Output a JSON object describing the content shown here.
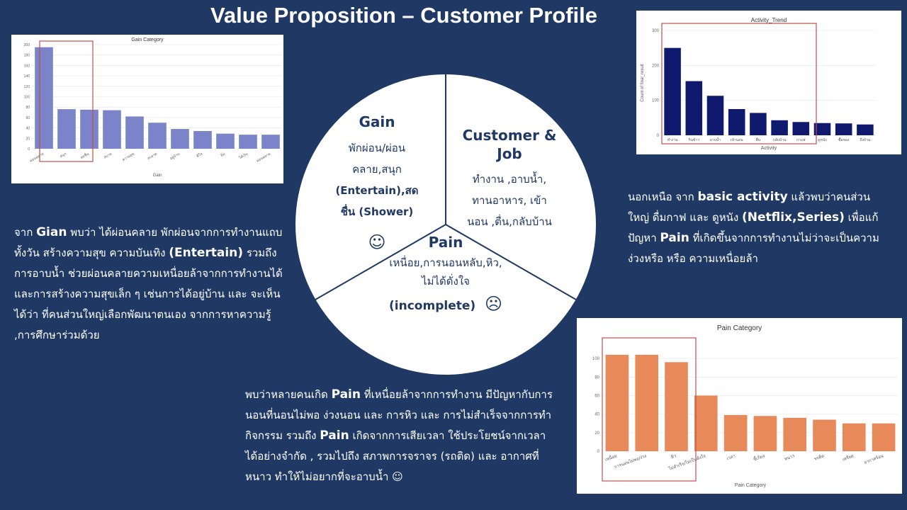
{
  "page_title": "Value Proposition – Customer Profile",
  "gain_text": {
    "p1": "จาก ",
    "k1": "Gian",
    "p2": " พบว่า ได้ผ่อนคลาย พักผ่อนจากการทำงานแถบทั้งวัน สร้างความสุข ความบันเทิง ",
    "k2": "(Entertain)",
    "p3": " รวมถึง การอาบน้ำ ช่วยผ่อนคลายความเหนื่อยล้าจากการทำงานได้ และการสร้างความสุขเล็ก ๆ เช่นการได้อยู่บ้าน และ จะเห็นได้ว่า ที่คนส่วนใหญ่เลือกพัฒนาตนเอง จากการหาความรู้ ,การศึกษาร่วมด้วย"
  },
  "activity_text": {
    "p1": "นอกเหนือ จาก ",
    "k1": "basic activity",
    "p2": " แล้วพบว่าคนส่วนใหญ่ ดื่มกาฟ และ ดูหนัง ",
    "k2": "(Netflix,Series)",
    "p3": " เพื่อแก้ปัญหา ",
    "k3": "Pain",
    "p4": " ที่เกิดขึ้นจากการทำงานไม่ว่าจะเป็นความง่วงหรือ หรือ ความเหนื่อยล้า"
  },
  "pain_text": {
    "p1": "พบว่าหลายคนเกิด ",
    "k1": "Pain",
    "p2": " ที่เหนื่อยล้าจากการทำงาน มีปัญหากับการนอนที่นอนไม่พอ ง่วงนอน และ การหิว และ การไม่สำเร็จจากการทำกิจกรรม รวมถึง ",
    "k2": "Pain",
    "p3": " เกิดจากการเสียเวลา ใช้ประโยชน์จากเวลาได้อย่างจำกัด , รวมไปถึง สภาพการจราจร (รถติด) และ อากาศที่หนาว ทำให้ไม่อยากที่จะอาบน้ำ ☺"
  },
  "circle": {
    "gain_title": "Gain",
    "gain_line1": "พักผ่อน/ผ่อน",
    "gain_line2": "คลาย,สนุก",
    "gain_line3": "(Entertain),สด",
    "gain_line4": "ชื่น (Shower)",
    "gain_face": "☺",
    "job_title": "Customer & Job",
    "job_line1": "ทำงาน ,อาบน้ำ,",
    "job_line2": "ทานอาหาร, เข้า",
    "job_line3": "นอน ,ตื่น,กลับบ้าน",
    "pain_title": "Pain",
    "pain_line1": "เหนื่อย,การนอนหลับ,หิว,",
    "pain_line2": "ไม่ได้ดั่งใจ",
    "pain_line3": "(incomplete)",
    "pain_face": "☹"
  },
  "chart_data": [
    {
      "type": "bar",
      "title": "Gain Category",
      "xlabel": "Gain",
      "ylabel": "",
      "ylim": [
        0,
        200
      ],
      "yticks": [
        0,
        20,
        40,
        60,
        80,
        100,
        120,
        140,
        160,
        180,
        200
      ],
      "categories": [
        "ผ่อนคลาย",
        "สนุก",
        "สดชื่น",
        "สบาย",
        "ความสุข",
        "สะอาด",
        "อยู่บ้าน",
        "ดีใจ",
        "อิ่ม",
        "ได้เงิน",
        "ผ่อนคลาย"
      ],
      "values": [
        195,
        76,
        75,
        74,
        62,
        50,
        38,
        34,
        29,
        27,
        27
      ],
      "highlight": "first 4 bars",
      "color": "#7b83c9"
    },
    {
      "type": "bar",
      "title": "Activity_Trend",
      "xlabel": "Activity",
      "ylabel": "Count of final_result",
      "ylim": [
        0,
        300
      ],
      "yticks": [
        0,
        100,
        200,
        300
      ],
      "categories": [
        "ทำงาน",
        "กินข้าว",
        "อาบน้ำ",
        "เข้านอน",
        "ตื่น",
        "กลับบ้าน",
        "กาแฟ",
        "ดูหนัง",
        "ซื้อของ",
        "ถึงบ้าน"
      ],
      "values": [
        250,
        155,
        113,
        75,
        64,
        43,
        38,
        35,
        34,
        31
      ],
      "highlight": "first 6 bars",
      "color": "#0f1a6e"
    },
    {
      "type": "bar",
      "title": "Pain Category",
      "xlabel": "Pain Category",
      "ylabel": "",
      "ylim": [
        0,
        110
      ],
      "yticks": [
        0,
        20,
        40,
        60,
        80,
        100
      ],
      "categories": [
        "เหนื่อย",
        "การนอนไม่พอ/ง่วง",
        "หิว",
        "ไม่สำเร็จ/ไม่เป็นดั่งใจ",
        "เวลา",
        "ขี้เกียจ",
        "หนาว",
        "รถติด",
        "เครียด",
        "อากาศร้อน"
      ],
      "values": [
        104,
        104,
        96,
        60,
        39,
        38,
        36,
        34,
        30,
        30
      ],
      "highlight": "first 3 bars",
      "color": "#e8895a"
    }
  ],
  "colors": {
    "background": "#1f3864",
    "highlight_box": "#c0504d"
  }
}
